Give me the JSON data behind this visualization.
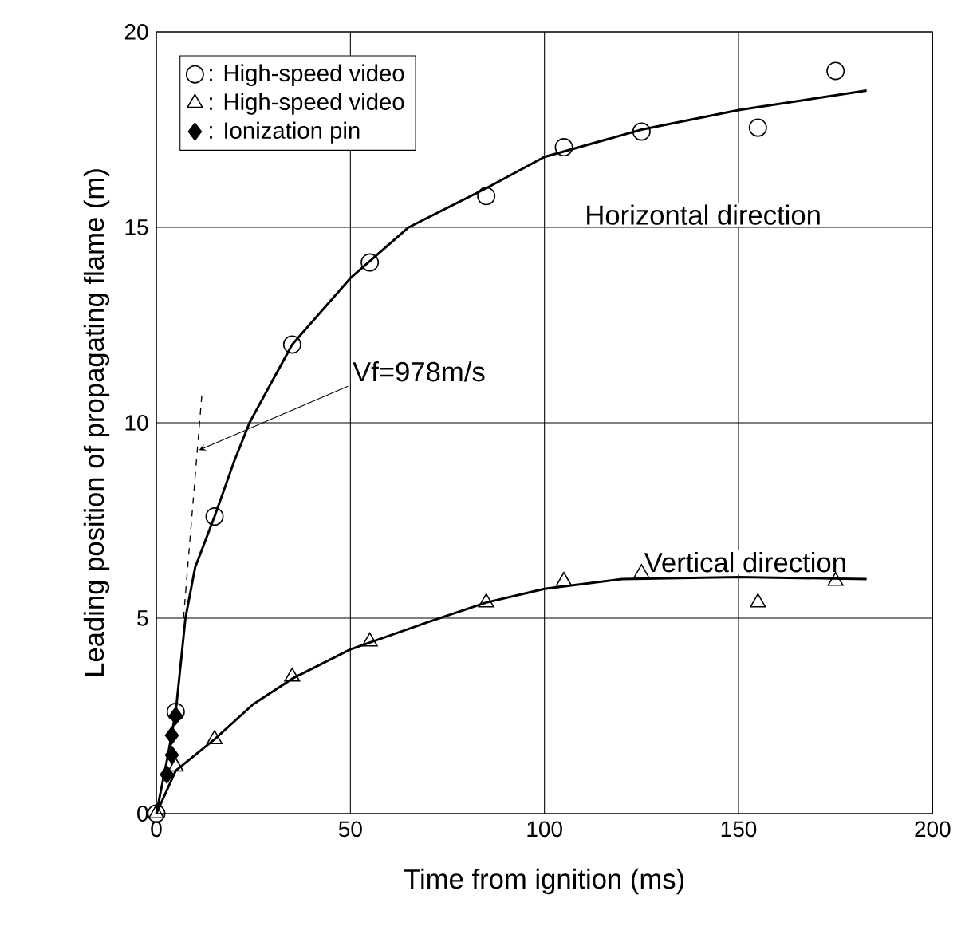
{
  "chart_data": {
    "type": "scatter",
    "xlabel": "Time from ignition (ms)",
    "ylabel": "Leading position of propagating flame (m)",
    "xlim": [
      0,
      200
    ],
    "ylim": [
      0,
      20
    ],
    "xticks": [
      0,
      50,
      100,
      150,
      200
    ],
    "yticks": [
      0,
      5,
      10,
      15,
      20
    ],
    "grid": true,
    "legend": "top left",
    "series": [
      {
        "name": ": High-speed video",
        "marker": "circle",
        "color": "#000000",
        "x": [
          0,
          5,
          15,
          35,
          55,
          85,
          105,
          125,
          155,
          175
        ],
        "values": [
          0,
          2.6,
          7.6,
          12,
          14.1,
          15.8,
          17.05,
          17.45,
          17.55,
          19.0
        ]
      },
      {
        "name": ": High-speed video",
        "marker": "triangle",
        "color": "#000000",
        "x": [
          0,
          5,
          15,
          35,
          55,
          85,
          105,
          125,
          155,
          175
        ],
        "values": [
          0,
          1.2,
          1.9,
          3.5,
          4.4,
          5.4,
          5.95,
          6.15,
          5.4,
          5.95
        ]
      },
      {
        "name": ": Ionization pin",
        "marker": "diamond",
        "color": "#000000",
        "x": [
          2.7,
          4,
          4,
          5
        ],
        "values": [
          1.0,
          1.5,
          2.0,
          2.5
        ]
      },
      {
        "name": "Horizontal direction",
        "type": "line",
        "marker": "none",
        "line_style": "solid",
        "color": "#000000",
        "x": [
          0,
          3,
          5,
          7.5,
          10,
          15,
          20,
          24,
          35,
          50,
          65,
          85,
          100,
          125,
          150,
          183
        ],
        "values": [
          0,
          1.5,
          2.6,
          5,
          6.3,
          7.6,
          9.0,
          10,
          12,
          13.7,
          15,
          16,
          16.8,
          17.5,
          18,
          18.5
        ]
      },
      {
        "name": "Vertical direction",
        "type": "line",
        "marker": "none",
        "line_style": "solid",
        "color": "#000000",
        "x": [
          0,
          5,
          15,
          25,
          35,
          50,
          70,
          85,
          100,
          120,
          150,
          183
        ],
        "values": [
          0,
          1.1,
          1.9,
          2.8,
          3.45,
          4.2,
          4.9,
          5.4,
          5.75,
          6.0,
          6.05,
          6.0
        ]
      },
      {
        "type": "line",
        "marker": "none",
        "line_style": "dashed",
        "color": "#000000",
        "x": [
          7,
          11.8
        ],
        "values": [
          5,
          10.8
        ]
      }
    ],
    "annotations": [
      {
        "text": "Vf=978m/s",
        "x": 11,
        "y": 9.3
      }
    ]
  }
}
